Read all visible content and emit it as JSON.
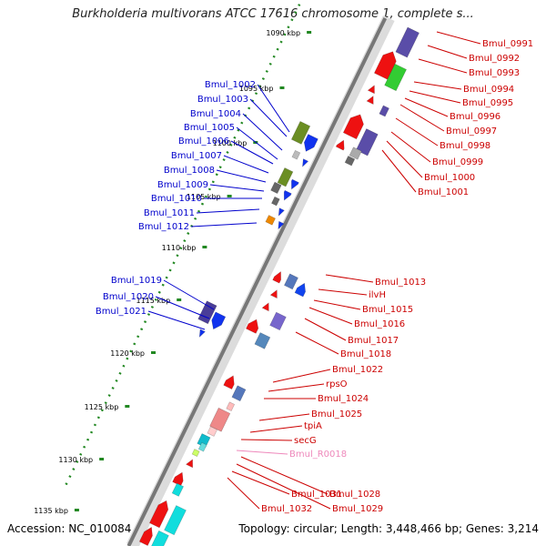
{
  "title": "Burkholderia multivorans ATCC 17616 chromosome 1, complete s...",
  "footer": {
    "accession": "Accession: NC_010084",
    "summary": "Topology: circular; Length: 3,448,466 bp; Genes: 3,214"
  },
  "colors": {
    "forward_label": "#0000cc",
    "reverse_label": "#cc0000",
    "rna_label": "#ee88bb",
    "backbone": "#999999",
    "ruler": "#228822"
  },
  "kbp_ticks": [
    "1090 kbp",
    "1095 kbp",
    "1100 kbp",
    "1105 kbp",
    "1110 kbp",
    "1115 kbp",
    "1120 kbp",
    "1125 kbp",
    "1130 kbp",
    "1135 kbp"
  ],
  "left_labels": [
    "Bmul_1002",
    "Bmul_1003",
    "Bmul_1004",
    "Bmul_1005",
    "Bmul_1006",
    "Bmul_1007",
    "Bmul_1008",
    "Bmul_1009",
    "Bmul_1010",
    "Bmul_1011",
    "Bmul_1012",
    "Bmul_1019",
    "Bmul_1020",
    "Bmul_1021"
  ],
  "right_labels": [
    "Bmul_0991",
    "Bmul_0992",
    "Bmul_0993",
    "Bmul_0994",
    "Bmul_0995",
    "Bmul_0996",
    "Bmul_0997",
    "Bmul_0998",
    "Bmul_0999",
    "Bmul_1000",
    "Bmul_1001",
    "Bmul_1013",
    "ilvH",
    "Bmul_1015",
    "Bmul_1016",
    "Bmul_1017",
    "Bmul_1018",
    "Bmul_1022",
    "rpsO",
    "Bmul_1024",
    "Bmul_1025",
    "tpiA",
    "secG",
    "Bmul_R0018",
    "Bmul_1028",
    "Bmul_1029",
    "Bmul_1031",
    "Bmul_1032"
  ]
}
